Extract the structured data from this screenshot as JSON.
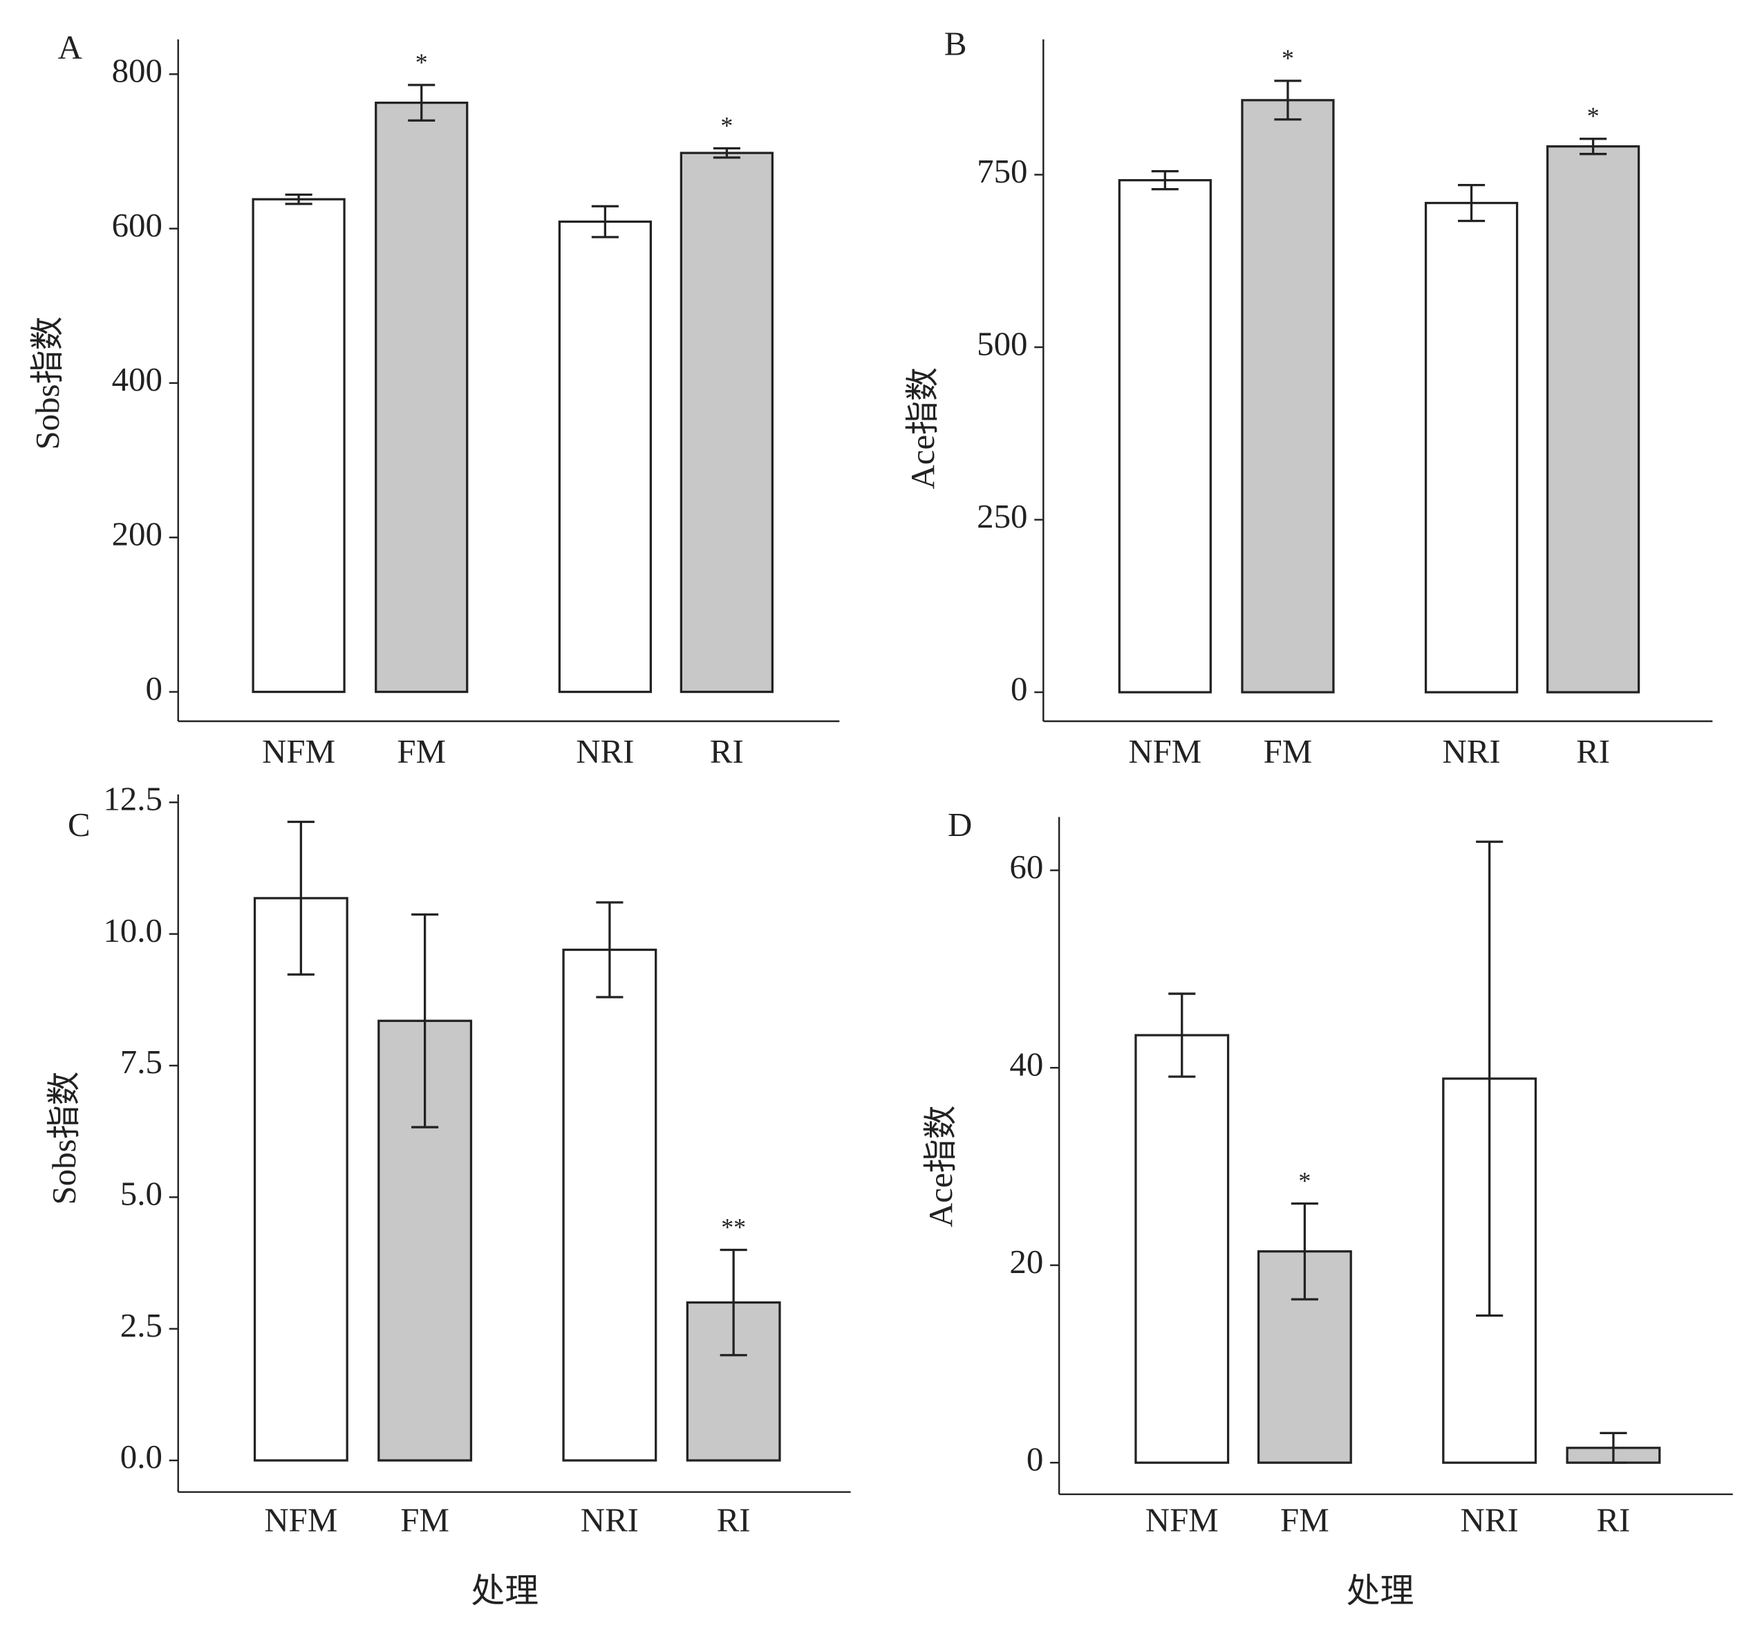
{
  "chart_data": [
    {
      "type": "bar",
      "panel": "A",
      "ylabel": "Sobs指数",
      "categories": [
        "NFM",
        "FM",
        "NRI",
        "RI"
      ],
      "values": [
        638,
        763,
        609,
        698
      ],
      "errors": [
        6,
        23,
        20,
        6
      ],
      "colors": [
        "#ffffff",
        "#c8c8c8",
        "#ffffff",
        "#c8c8c8"
      ],
      "annotations": [
        null,
        "*",
        null,
        "*"
      ],
      "ylim": [
        -38,
        845
      ],
      "yticks": [
        0,
        200,
        400,
        600,
        800
      ]
    },
    {
      "type": "bar",
      "panel": "B",
      "ylabel": "Ace指数",
      "categories": [
        "NFM",
        "FM",
        "NRI",
        "RI"
      ],
      "values": [
        742,
        858,
        709,
        791
      ],
      "errors": [
        13,
        28,
        26,
        11
      ],
      "colors": [
        "#ffffff",
        "#c8c8c8",
        "#ffffff",
        "#c8c8c8"
      ],
      "annotations": [
        null,
        "*",
        null,
        "*"
      ],
      "ylim": [
        -42,
        946
      ],
      "yticks": [
        0,
        250,
        500,
        750
      ]
    },
    {
      "type": "bar",
      "panel": "C",
      "ylabel": "Sobs指数",
      "xlabel": "处理",
      "categories": [
        "NFM",
        "FM",
        "NRI",
        "RI"
      ],
      "values": [
        10.68,
        8.35,
        9.7,
        3.0
      ],
      "errors": [
        1.45,
        2.02,
        0.9,
        1.0
      ],
      "colors": [
        "#ffffff",
        "#c8c8c8",
        "#ffffff",
        "#c8c8c8"
      ],
      "annotations": [
        null,
        null,
        null,
        "**"
      ],
      "ylim": [
        -0.6,
        12.65
      ],
      "yticks": [
        {
          "value": 0,
          "label": "0.0"
        },
        2.5,
        {
          "value": 5,
          "label": "5.0"
        },
        7.5,
        {
          "value": 10,
          "label": "10.0"
        },
        12.5
      ]
    },
    {
      "type": "bar",
      "panel": "D",
      "ylabel": "Ace指数",
      "xlabel": "处理",
      "categories": [
        "NFM",
        "FM",
        "NRI",
        "RI"
      ],
      "values": [
        43.3,
        21.4,
        38.9,
        1.5
      ],
      "errors": [
        4.2,
        4.85,
        24,
        1.5
      ],
      "colors": [
        "#ffffff",
        "#c8c8c8",
        "#ffffff",
        "#c8c8c8"
      ],
      "annotations": [
        null,
        "*",
        null,
        null
      ],
      "ylim": [
        -3.2,
        65.4
      ],
      "yticks": [
        0,
        20,
        40,
        60
      ]
    }
  ]
}
